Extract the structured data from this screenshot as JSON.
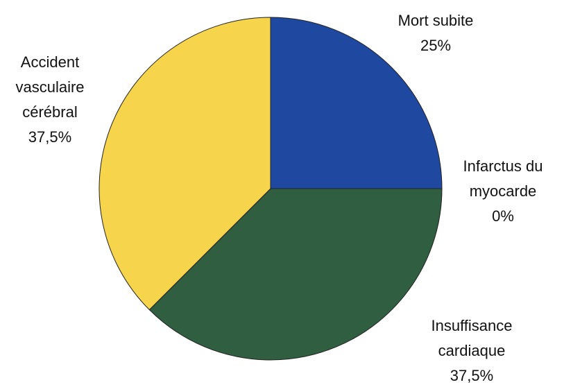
{
  "chart_data": {
    "type": "pie",
    "categories": [
      "Mort subite",
      "Infarctus du myocarde",
      "Insuffisance cardiaque",
      "Accident vasculaire cérébral"
    ],
    "values": [
      25,
      0,
      37.5,
      37.5
    ],
    "value_labels": [
      "25%",
      "0%",
      "37,5%",
      "37,5%"
    ],
    "colors": [
      "#1f48a0",
      "#8fb0d8",
      "#2f5f40",
      "#f6d44c"
    ]
  }
}
